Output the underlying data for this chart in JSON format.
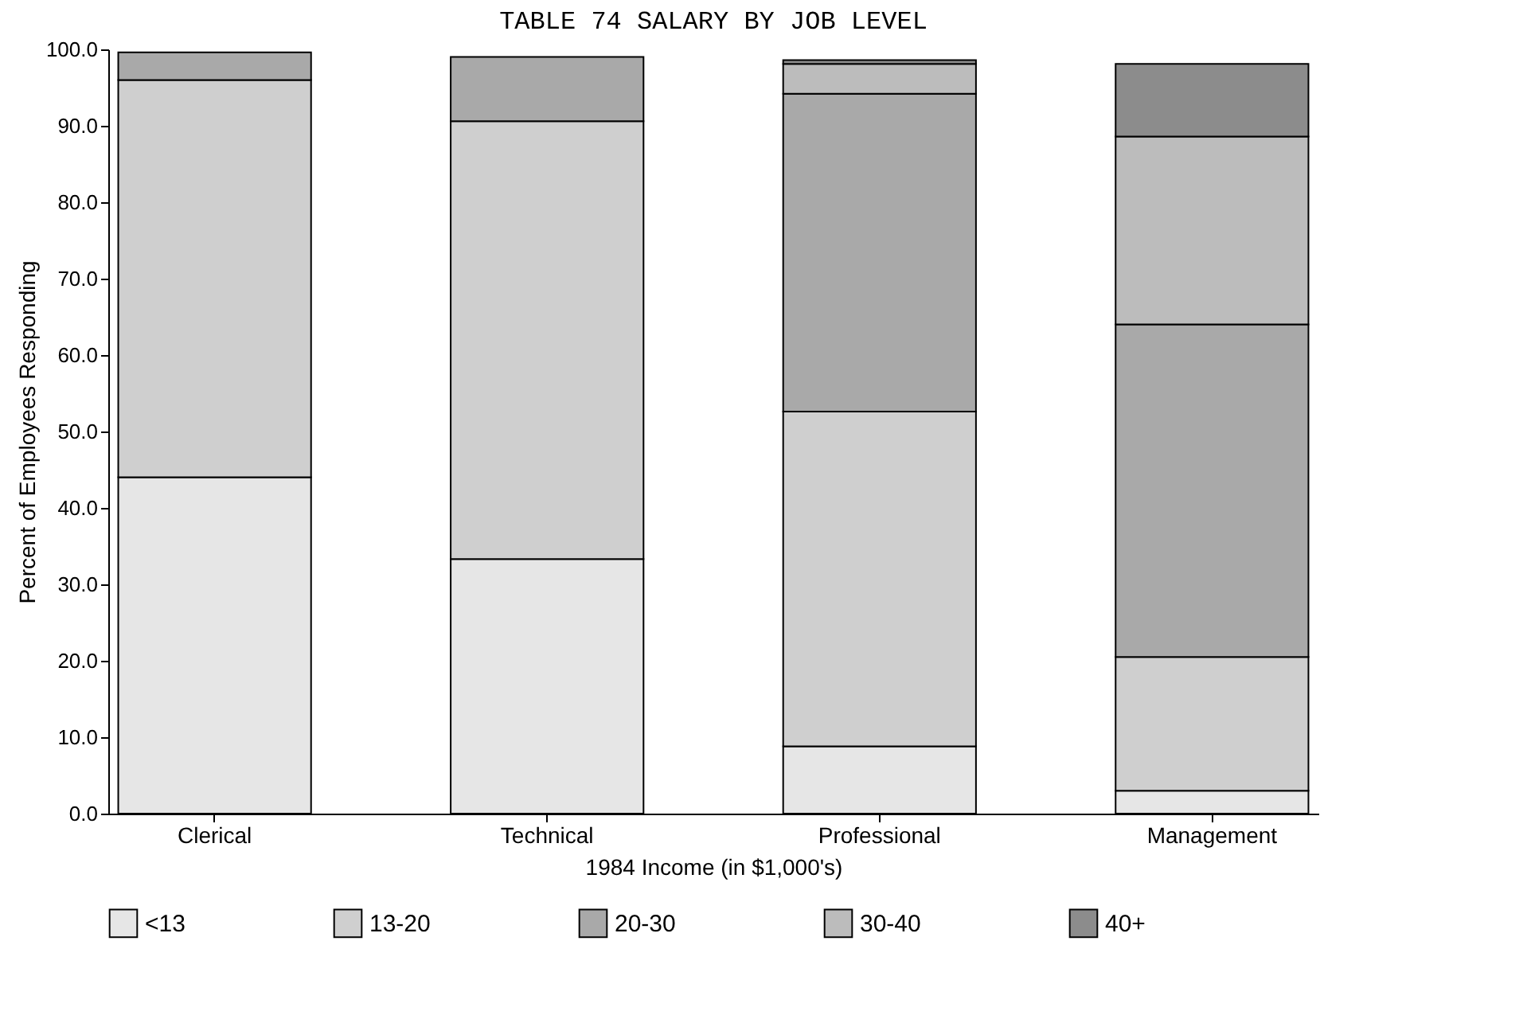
{
  "chart_data": {
    "type": "bar",
    "title": "TABLE 74  SALARY BY JOB LEVEL",
    "xlabel": "1984 Income (in $1,000's)",
    "ylabel": "Percent of Employees Responding",
    "categories": [
      "Clerical",
      "Technical",
      "Professional",
      "Management"
    ],
    "stacked": true,
    "series": [
      {
        "name": "<13",
        "color": "#e6e6e6",
        "values": [
          44,
          33.3,
          8.8,
          3.0
        ]
      },
      {
        "name": "13-20",
        "color": "#cfcfcf",
        "values": [
          52,
          57.3,
          43.8,
          17.5
        ]
      },
      {
        "name": "20-30",
        "color": "#a9a9a9",
        "values": [
          3.6,
          8.4,
          41.6,
          43.5
        ]
      },
      {
        "name": "30-40",
        "color": "#bcbcbc",
        "values": [
          null,
          null,
          3.9,
          24.6
        ]
      },
      {
        "name": "40+",
        "color": "#8c8c8c",
        "values": [
          null,
          null,
          0.5,
          9.5
        ]
      }
    ],
    "ylim": [
      0,
      100
    ],
    "yticks": [
      {
        "value": 0,
        "label": "0.0"
      },
      {
        "value": 10,
        "label": "10.0"
      },
      {
        "value": 20,
        "label": "20.0"
      },
      {
        "value": 30,
        "label": "30.0"
      },
      {
        "value": 40,
        "label": "40.0"
      },
      {
        "value": 50,
        "label": "50.0"
      },
      {
        "value": 60,
        "label": "60.0"
      },
      {
        "value": 70,
        "label": "70.0"
      },
      {
        "value": 80,
        "label": "80.0"
      },
      {
        "value": 90,
        "label": "90.0"
      },
      {
        "value": 100,
        "label": "100.0"
      }
    ],
    "grid": false,
    "legend": "bottom"
  }
}
